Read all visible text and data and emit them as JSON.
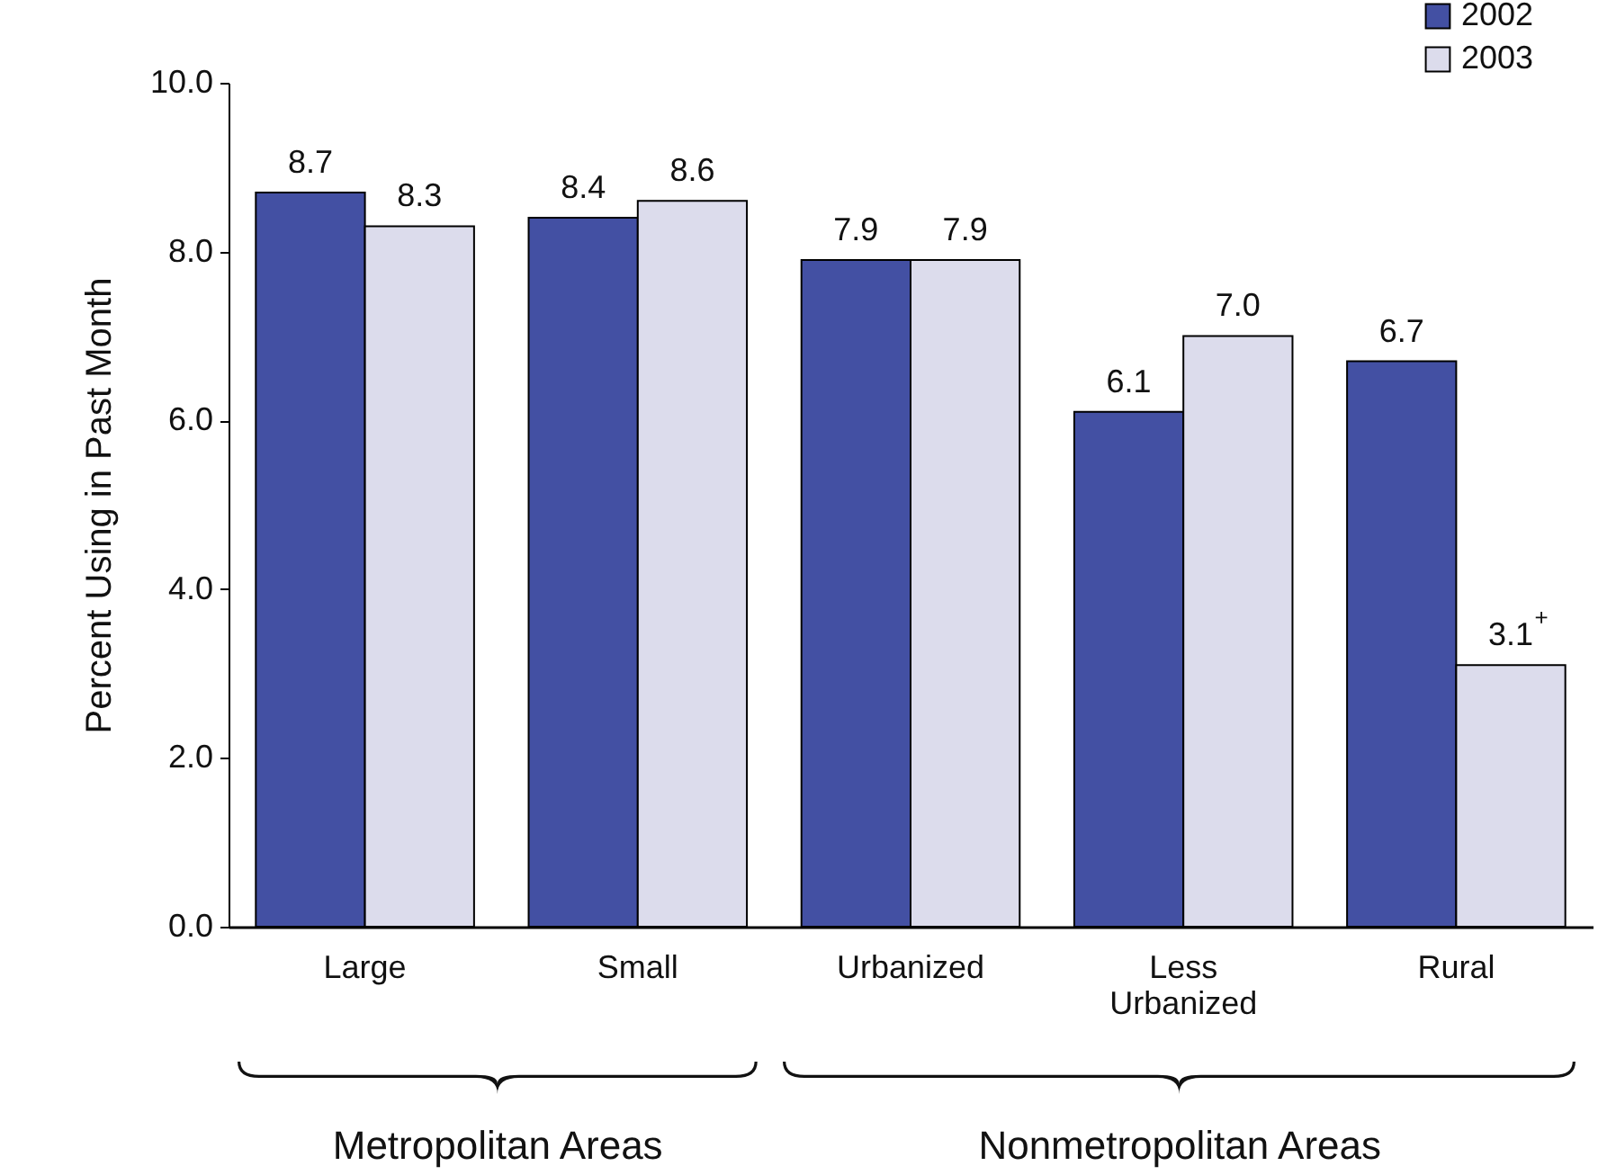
{
  "chart_data": {
    "type": "bar",
    "ylabel": "Percent Using in Past Month",
    "categories": [
      "Large",
      "Small",
      "Urbanized",
      "Less Urbanized",
      "Rural"
    ],
    "series": [
      {
        "name": "2002",
        "color": "#4350a3",
        "values": [
          8.7,
          8.4,
          7.9,
          6.1,
          6.7
        ],
        "value_labels": [
          "8.7",
          "8.4",
          "7.9",
          "6.1",
          "6.7"
        ]
      },
      {
        "name": "2003",
        "color": "#dcdcec",
        "values": [
          8.3,
          8.6,
          7.9,
          7.0,
          3.1
        ],
        "value_labels": [
          "8.3",
          "8.6",
          "7.9",
          "7.0",
          "3.1$^{+}$"
        ]
      }
    ],
    "ylim": [
      0,
      10
    ],
    "yticks": [
      {
        "value": 0,
        "label": "0.0"
      },
      {
        "value": 2,
        "label": "2.0"
      },
      {
        "value": 4,
        "label": "4.0"
      },
      {
        "value": 6,
        "label": "6.0"
      },
      {
        "value": 8,
        "label": "8.0"
      },
      {
        "value": 10,
        "label": "10.0"
      }
    ],
    "annotations": [
      "Metropolitan Areas",
      "Nonmetropolitan Areas"
    ],
    "legend": "top right",
    "grid": false
  }
}
